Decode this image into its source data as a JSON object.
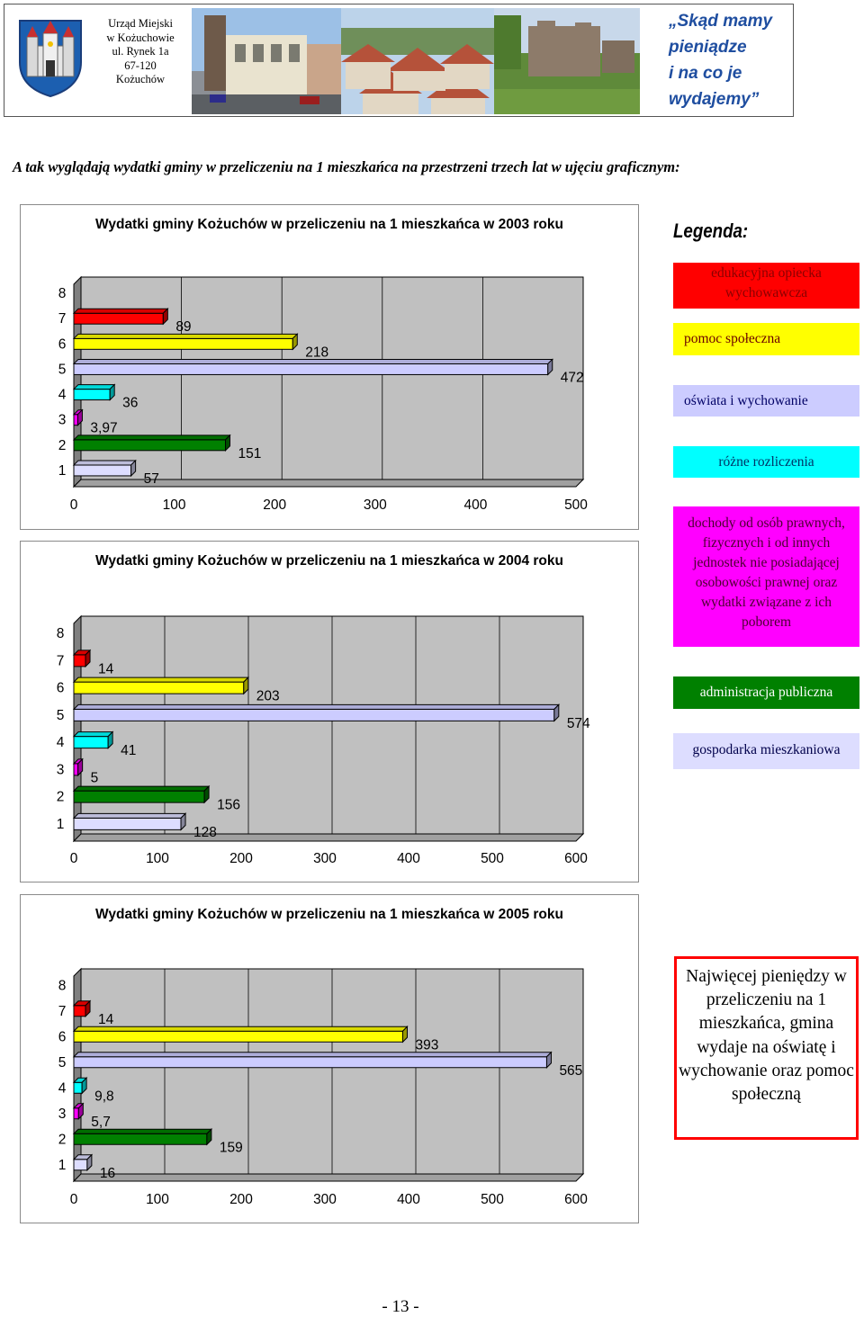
{
  "header": {
    "office_lines": [
      "Urząd Miejski",
      "w Kożuchowie",
      "ul. Rynek 1a",
      "67-120",
      "Kożuchów"
    ],
    "slogan_lines": [
      "„Skąd mamy",
      "pieniądze",
      "i na co je",
      "wydajemy”"
    ]
  },
  "intro": "A tak wyglądają wydatki gminy w przeliczeniu na 1 mieszkańca na przestrzeni trzech lat w ujęciu graficznym:",
  "legend": {
    "title": "Legenda:",
    "items": [
      {
        "label": "edukacyjna opiecka wychowawcza",
        "color": "#ff0000",
        "text_color": "#8b0000"
      },
      {
        "label": "pomoc społeczna",
        "color": "#ffff00",
        "text_color": "#6b0000"
      },
      {
        "label": "oświata i wychowanie",
        "color": "#ccccff",
        "text_color": "#000066"
      },
      {
        "label": "różne rozliczenia",
        "color": "#00ffff",
        "text_color": "#003366"
      },
      {
        "label": "dochody od osób prawnych, fizycznych i od innych jednostek nie posiadającej osobowości prawnej oraz wydatki związane z ich poborem",
        "color": "#ff00ff",
        "text_color": "#4b0030"
      },
      {
        "label": "administracja publiczna",
        "color": "#008000",
        "text_color": "#ffffff"
      },
      {
        "label": "gospodarka mieszkaniowa",
        "color": "#ddddff",
        "text_color": "#00004b"
      }
    ]
  },
  "chart_data": [
    {
      "type": "bar",
      "orientation": "horizontal",
      "title": "Wydatki gminy Kożuchów w przeliczeniu na 1 mieszkańca w 2003 roku",
      "categories": [
        "1",
        "2",
        "3",
        "4",
        "5",
        "6",
        "7",
        "8"
      ],
      "values": [
        57,
        151,
        3.97,
        36,
        472,
        218,
        89,
        null
      ],
      "value_labels": [
        "57",
        "151",
        "3,97",
        "36",
        "472",
        "218",
        "89",
        ""
      ],
      "colors": [
        "#ddddff",
        "#008000",
        "#ff00ff",
        "#00ffff",
        "#ccccff",
        "#ffff00",
        "#ff0000",
        ""
      ],
      "xlim": [
        0,
        500
      ],
      "xticks": [
        "0",
        "100",
        "200",
        "300",
        "400",
        "500"
      ],
      "grid": true
    },
    {
      "type": "bar",
      "orientation": "horizontal",
      "title": "Wydatki gminy Kożuchów w przeliczeniu na 1 mieszkańca w 2004 roku",
      "categories": [
        "1",
        "2",
        "3",
        "4",
        "5",
        "6",
        "7",
        "8"
      ],
      "values": [
        128,
        156,
        5,
        41,
        574,
        203,
        14,
        null
      ],
      "value_labels": [
        "128",
        "156",
        "5",
        "41",
        "574",
        "203",
        "14",
        ""
      ],
      "colors": [
        "#ddddff",
        "#008000",
        "#ff00ff",
        "#00ffff",
        "#ccccff",
        "#ffff00",
        "#ff0000",
        ""
      ],
      "xlim": [
        0,
        600
      ],
      "xticks": [
        "0",
        "100",
        "200",
        "300",
        "400",
        "500",
        "600"
      ],
      "grid": true
    },
    {
      "type": "bar",
      "orientation": "horizontal",
      "title": "Wydatki gminy Kożuchów w przeliczeniu na 1 mieszkańca w 2005 roku",
      "categories": [
        "1",
        "2",
        "3",
        "4",
        "5",
        "6",
        "7",
        "8"
      ],
      "values": [
        16,
        159,
        5.7,
        9.8,
        565,
        393,
        14,
        null
      ],
      "value_labels": [
        "16",
        "159",
        "5,7",
        "9,8",
        "565",
        "393",
        "14",
        ""
      ],
      "colors": [
        "#ddddff",
        "#008000",
        "#ff00ff",
        "#00ffff",
        "#ccccff",
        "#ffff00",
        "#ff0000",
        ""
      ],
      "xlim": [
        0,
        600
      ],
      "xticks": [
        "0",
        "100",
        "200",
        "300",
        "400",
        "500",
        "600"
      ],
      "grid": true
    }
  ],
  "note": "Najwięcej pieniędzy w przeliczeniu na 1 mieszkańca, gmina wydaje na oświatę i wychowanie oraz pomoc społeczną",
  "page_number": "- 13 -"
}
